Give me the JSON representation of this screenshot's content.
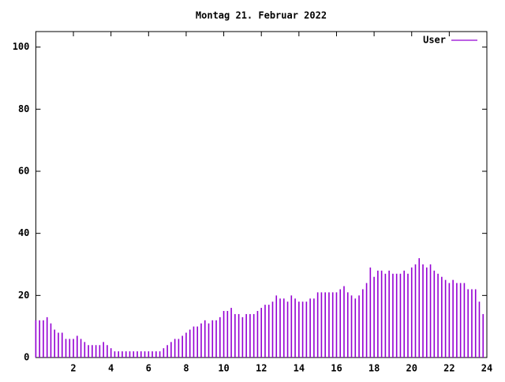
{
  "chart_data": {
    "type": "impulses",
    "title": "Montag 21. Februar 2022",
    "x": [
      0,
      0.2,
      0.4,
      0.6,
      0.8,
      1,
      1.2,
      1.4,
      1.6,
      1.8,
      2,
      2.2,
      2.4,
      2.6,
      2.8,
      3,
      3.2,
      3.4,
      3.6,
      3.8,
      4,
      4.2,
      4.4,
      4.6,
      4.8,
      5,
      5.2,
      5.4,
      5.6,
      5.8,
      6,
      6.2,
      6.4,
      6.6,
      6.8,
      7,
      7.2,
      7.4,
      7.6,
      7.8,
      8,
      8.2,
      8.4,
      8.6,
      8.8,
      9,
      9.2,
      9.4,
      9.6,
      9.8,
      10,
      10.2,
      10.4,
      10.6,
      10.8,
      11,
      11.2,
      11.4,
      11.6,
      11.8,
      12,
      12.2,
      12.4,
      12.6,
      12.8,
      13,
      13.2,
      13.4,
      13.6,
      13.8,
      14,
      14.2,
      14.4,
      14.6,
      14.8,
      15,
      15.2,
      15.4,
      15.6,
      15.8,
      16,
      16.2,
      16.4,
      16.6,
      16.8,
      17,
      17.2,
      17.4,
      17.6,
      17.8,
      18,
      18.2,
      18.4,
      18.6,
      18.8,
      19,
      19.2,
      19.4,
      19.6,
      19.8,
      20,
      20.2,
      20.4,
      20.6,
      20.8,
      21,
      21.2,
      21.4,
      21.6,
      21.8,
      22,
      22.2,
      22.4,
      22.6,
      22.8,
      23,
      23.2,
      23.4,
      23.6,
      23.8
    ],
    "series": [
      {
        "name": "User",
        "color": "#9400d3",
        "values": [
          12,
          12,
          12,
          13,
          11,
          9,
          8,
          8,
          6,
          6,
          6,
          7,
          6,
          5,
          4,
          4,
          4,
          4,
          5,
          4,
          3,
          2,
          2,
          2,
          2,
          2,
          2,
          2,
          2,
          2,
          2,
          2,
          2,
          2,
          3,
          4,
          5,
          6,
          6,
          7,
          8,
          9,
          10,
          10,
          11,
          12,
          11,
          12,
          12,
          13,
          15,
          15,
          16,
          14,
          14,
          13,
          14,
          14,
          14,
          15,
          16,
          17,
          17,
          18,
          20,
          19,
          19,
          18,
          20,
          19,
          18,
          18,
          18,
          19,
          19,
          21,
          21,
          21,
          21,
          21,
          21,
          22,
          23,
          21,
          20,
          19,
          20,
          22,
          24,
          29,
          26,
          28,
          28,
          27,
          28,
          27,
          27,
          27,
          28,
          27,
          29,
          30,
          32,
          30,
          29,
          30,
          28,
          27,
          26,
          25,
          24,
          25,
          24,
          24,
          24,
          22,
          22,
          22,
          18,
          14
        ]
      }
    ],
    "xlim": [
      0,
      24
    ],
    "ylim": [
      0,
      105
    ],
    "xticks": [
      2,
      4,
      6,
      8,
      10,
      12,
      14,
      16,
      18,
      20,
      22,
      24
    ],
    "yticks": [
      0,
      20,
      40,
      60,
      80,
      100
    ],
    "legend": "top-right"
  }
}
